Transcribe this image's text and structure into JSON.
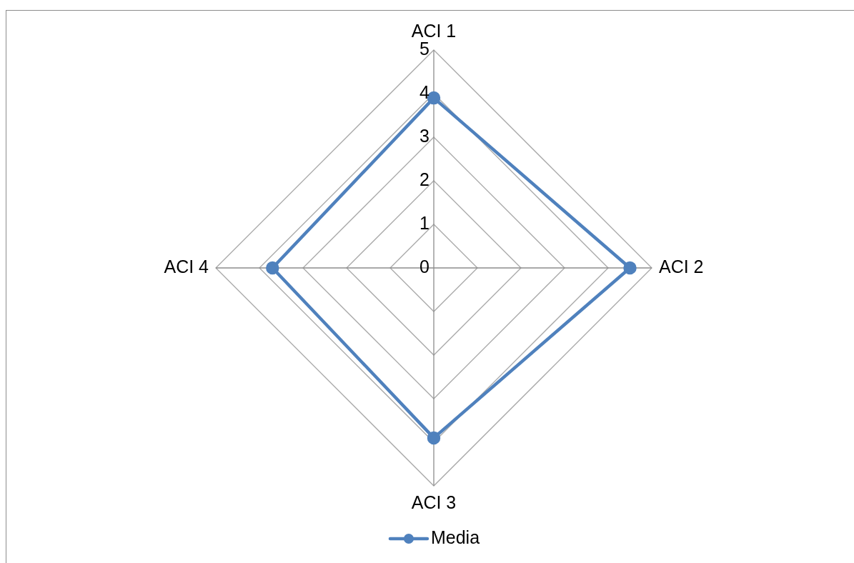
{
  "chart_data": {
    "type": "radar",
    "categories": [
      "ACI 1",
      "ACI 2",
      "ACI 3",
      "ACI 4"
    ],
    "series": [
      {
        "name": "Media",
        "color": "#4f81bd",
        "values": [
          3.9,
          4.5,
          3.9,
          3.7
        ]
      }
    ],
    "ylim": [
      0,
      5
    ],
    "yticks": [
      0,
      1,
      2,
      3,
      4,
      5
    ],
    "grid": true,
    "legend": "bottom",
    "marker": "circle",
    "line_style": "solid"
  }
}
